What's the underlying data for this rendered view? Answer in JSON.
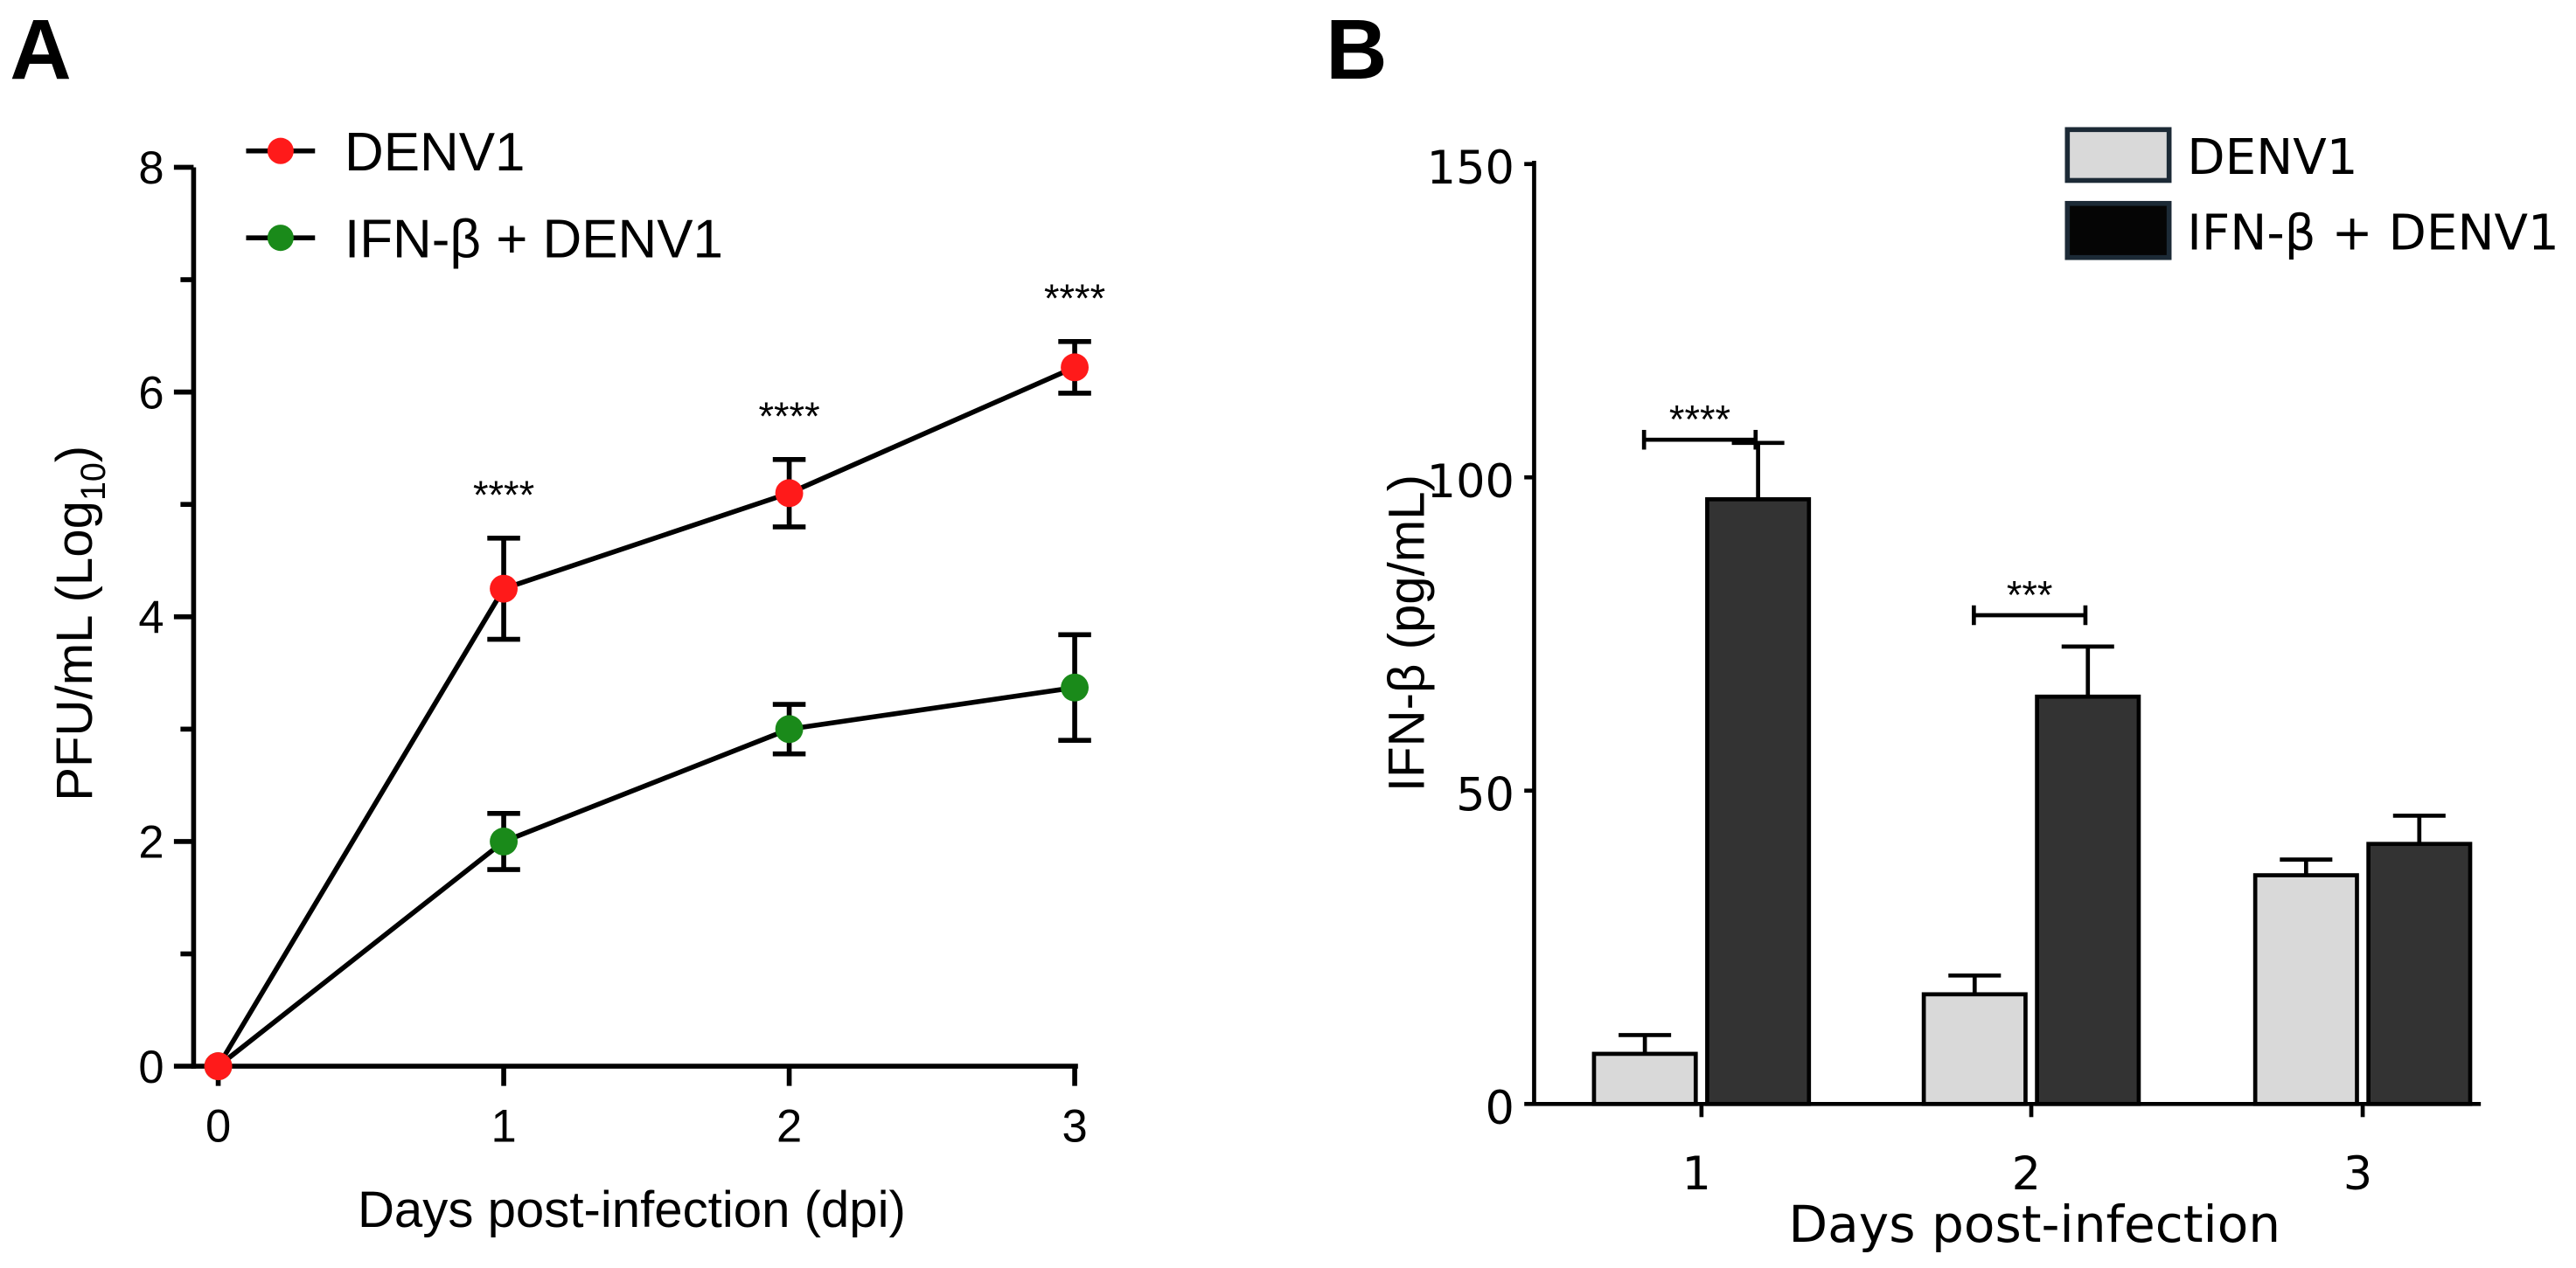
{
  "chart_data": [
    {
      "panel": "A",
      "type": "line",
      "title": "",
      "xlabel": "Days post-infection (dpi)",
      "ylabel": "PFU/mL (Log10)",
      "ylabel_main": "PFU/mL (Log",
      "ylabel_sub": "10",
      "ylabel_end": ")",
      "x": [
        0,
        1,
        2,
        3
      ],
      "x_tick_labels": [
        "0",
        "1",
        "2",
        "3"
      ],
      "ylim": [
        0,
        8
      ],
      "y_tick_labels": [
        "0",
        "2",
        "4",
        "6",
        "8"
      ],
      "y_ticks": [
        0,
        2,
        4,
        6,
        8
      ],
      "y_minor_ticks": [
        1,
        3,
        5,
        7
      ],
      "grid": false,
      "legend_position": "top-left",
      "series": [
        {
          "name": "DENV1",
          "color": "#ff1a1a",
          "values": [
            0,
            4.25,
            5.1,
            6.22
          ],
          "error": [
            0,
            0.45,
            0.3,
            0.23
          ]
        },
        {
          "name": "IFN-β + DENV1",
          "color": "#1a8a1a",
          "values": [
            0,
            2.0,
            3.0,
            3.37
          ],
          "error": [
            0,
            0.25,
            0.22,
            0.47
          ]
        }
      ],
      "annotations": [
        {
          "x": 1,
          "text": "****"
        },
        {
          "x": 2,
          "text": "****"
        },
        {
          "x": 3,
          "text": "****"
        }
      ]
    },
    {
      "panel": "B",
      "type": "bar",
      "title": "",
      "xlabel": "Days post-infection",
      "ylabel": "IFN-β (pg/mL)",
      "categories": [
        "1",
        "2",
        "3"
      ],
      "ylim": [
        0,
        150
      ],
      "y_ticks": [
        0,
        50,
        100,
        150
      ],
      "y_tick_labels": [
        "0",
        "50",
        "100",
        "150"
      ],
      "grid": false,
      "legend_position": "top-right",
      "series": [
        {
          "name": "DENV1",
          "color": "#d9d9d9",
          "values": [
            8,
            17.5,
            36.5
          ],
          "error": [
            3,
            3,
            2.5
          ]
        },
        {
          "name": "IFN-β + DENV1",
          "color": "#333333",
          "values": [
            96.5,
            65,
            41.5
          ],
          "error": [
            9,
            8,
            4.5
          ]
        }
      ],
      "annotations": [
        {
          "category": "1",
          "text": "****",
          "bracket_value": 106
        },
        {
          "category": "2",
          "text": "***",
          "bracket_value": 78
        }
      ]
    }
  ],
  "panel_labels": [
    "A",
    "B"
  ]
}
